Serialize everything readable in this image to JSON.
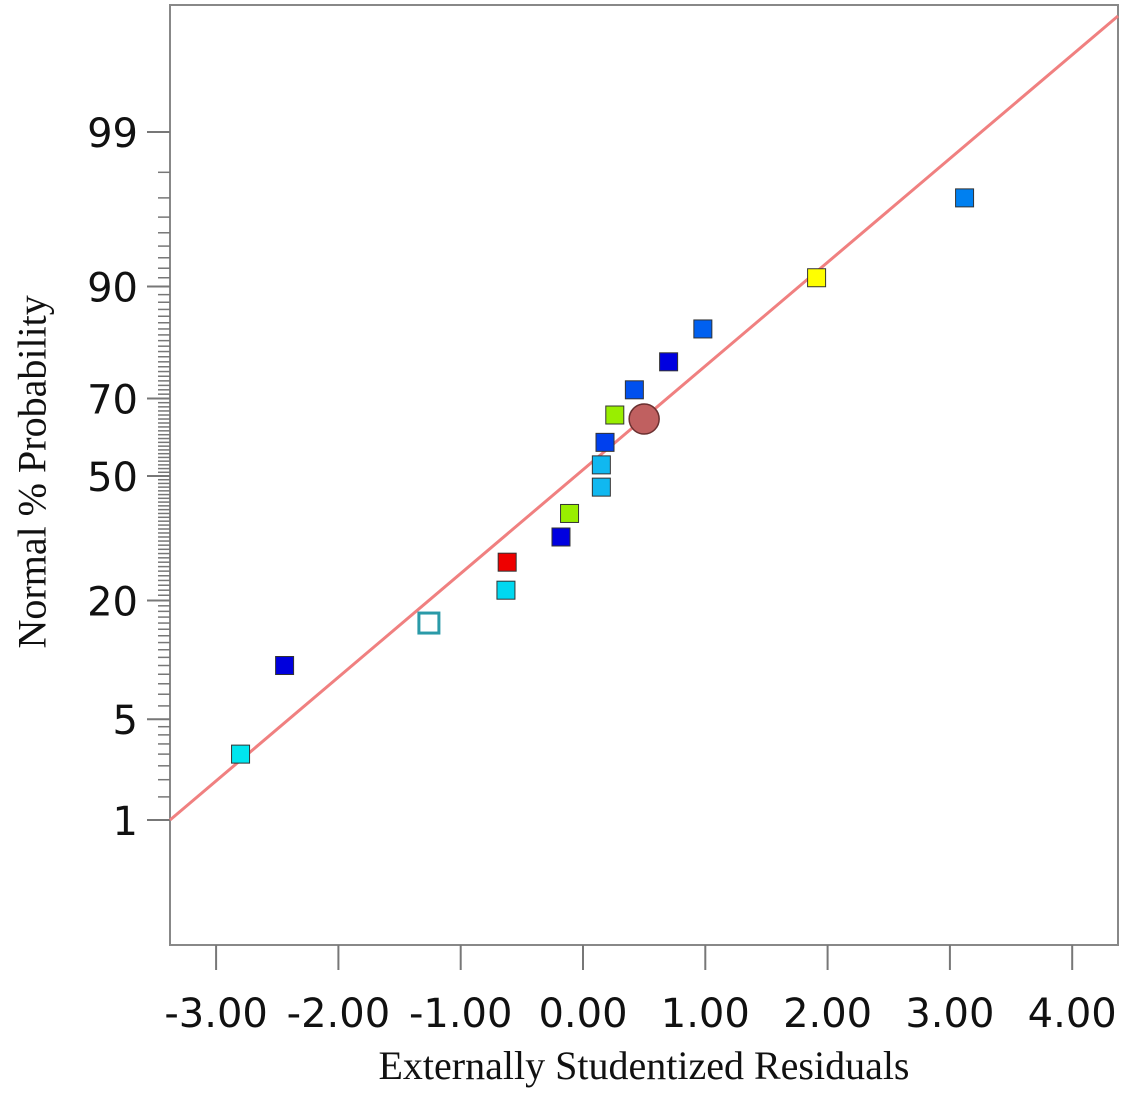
{
  "chart_data": {
    "type": "scatter",
    "title": "",
    "xlabel": "Externally Studentized Residuals",
    "ylabel": "Normal % Probability",
    "x_ticks": [
      "-3.00",
      "-2.00",
      "-1.00",
      "0.00",
      "1.00",
      "2.00",
      "3.00",
      "4.00"
    ],
    "x_tick_values": [
      -3,
      -2,
      -1,
      0,
      1,
      2,
      3,
      4
    ],
    "y_ticks": [
      "1",
      "5",
      "20",
      "50",
      "70",
      "90",
      "99"
    ],
    "y_scale": "normal-probability",
    "xlim": [
      -3.38,
      4.38
    ],
    "grid": false,
    "legend": null,
    "reference_line": {
      "color": "#f08080",
      "from": {
        "x": -3.38,
        "y": 1
      },
      "to": {
        "x": 4.38,
        "y": 99.9
      }
    },
    "points": [
      {
        "x": -2.8,
        "y": 3,
        "marker": "square",
        "color": "#00e5ee"
      },
      {
        "x": -2.44,
        "y": 10,
        "marker": "square",
        "color": "#0000dd"
      },
      {
        "x": -1.26,
        "y": 16,
        "marker": "square-hollow",
        "color": "#2a9aa8"
      },
      {
        "x": -0.63,
        "y": 22,
        "marker": "square",
        "color": "#00d8f0"
      },
      {
        "x": -0.62,
        "y": 28,
        "marker": "square",
        "color": "#ee0000"
      },
      {
        "x": -0.18,
        "y": 34,
        "marker": "square",
        "color": "#0000e0"
      },
      {
        "x": -0.11,
        "y": 40,
        "marker": "square",
        "color": "#99ee00"
      },
      {
        "x": 0.15,
        "y": 47,
        "marker": "square",
        "color": "#10b8f0"
      },
      {
        "x": 0.15,
        "y": 53,
        "marker": "square",
        "color": "#10b8f0"
      },
      {
        "x": 0.18,
        "y": 59,
        "marker": "square",
        "color": "#0040ee"
      },
      {
        "x": 0.26,
        "y": 66,
        "marker": "square",
        "color": "#99ee00"
      },
      {
        "x": 0.5,
        "y": 65,
        "marker": "circle",
        "color": "#c06060"
      },
      {
        "x": 0.42,
        "y": 72,
        "marker": "square",
        "color": "#0050ee"
      },
      {
        "x": 0.7,
        "y": 78,
        "marker": "square",
        "color": "#0000e0"
      },
      {
        "x": 0.98,
        "y": 84,
        "marker": "square",
        "color": "#0060f0"
      },
      {
        "x": 1.91,
        "y": 91,
        "marker": "square",
        "color": "#ffff00"
      },
      {
        "x": 3.12,
        "y": 97,
        "marker": "square",
        "color": "#0080f0"
      }
    ]
  }
}
